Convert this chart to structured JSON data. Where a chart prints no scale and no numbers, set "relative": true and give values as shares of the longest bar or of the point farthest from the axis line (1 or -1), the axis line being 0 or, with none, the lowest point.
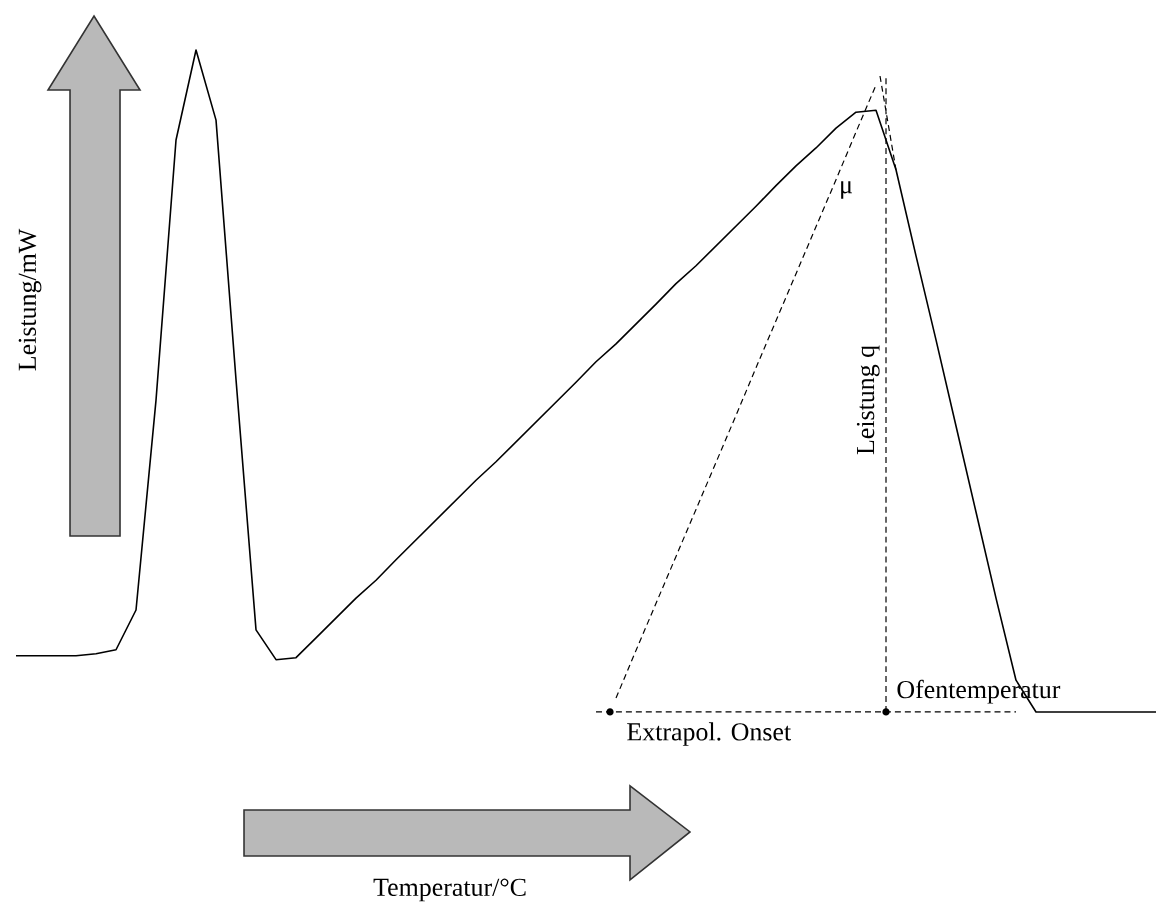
{
  "chart_data": {
    "type": "line",
    "relative": true,
    "ylabel": "Leistung/mW",
    "categories": [
      null,
      null,
      null,
      null,
      null,
      null,
      null,
      null,
      null,
      null,
      null,
      null,
      null,
      null,
      null,
      null,
      null,
      null,
      null,
      null,
      null,
      null,
      null,
      null,
      null,
      null,
      null,
      null,
      null,
      null,
      null,
      null,
      null,
      null,
      null,
      null,
      null,
      null,
      null,
      null,
      null,
      null,
      null,
      null,
      null,
      null,
      null,
      null,
      null,
      null,
      null,
      null,
      null,
      null,
      null,
      null,
      null,
      null
    ],
    "series": [
      {
        "color": "#000000",
        "line_style": "solid",
        "values": [
          0.085,
          0.085,
          0.085,
          0.085,
          0.088,
          0.094,
          0.154,
          0.471,
          0.864,
          1.0,
          0.894,
          0.502,
          0.124,
          0.079,
          0.082,
          0.112,
          0.142,
          0.172,
          0.199,
          0.23,
          0.26,
          0.29,
          0.32,
          0.35,
          0.378,
          0.408,
          0.438,
          0.468,
          0.498,
          0.529,
          0.556,
          0.586,
          0.616,
          0.647,
          0.674,
          0.704,
          0.734,
          0.764,
          0.795,
          0.825,
          0.852,
          0.882,
          0.906,
          0.909,
          0.819,
          0.689,
          0.562,
          0.432,
          0.302,
          0.172,
          0.048,
          0,
          0,
          0,
          0,
          0,
          0,
          0
        ]
      },
      {
        "color": "#000000",
        "line_style": "dashed",
        "values": [
          null,
          null,
          null,
          null,
          null,
          null,
          null,
          null,
          null,
          null,
          null,
          null,
          null,
          null,
          null,
          null,
          null,
          null,
          null,
          null,
          null,
          null,
          null,
          null,
          null,
          null,
          null,
          null,
          null,
          null,
          0.021,
          0.093,
          0.164,
          0.235,
          0.306,
          0.377,
          0.448,
          0.52,
          0.591,
          0.662,
          0.733,
          0.804,
          0.876,
          0.947,
          null,
          null,
          null,
          null,
          null,
          null,
          null,
          null,
          null,
          null,
          null,
          null,
          null,
          null
        ]
      },
      {
        "color": "#000000",
        "line_style": "dashed",
        "values": [
          null,
          null,
          null,
          null,
          null,
          null,
          null,
          null,
          null,
          null,
          null,
          null,
          null,
          null,
          null,
          null,
          null,
          null,
          null,
          null,
          null,
          null,
          null,
          null,
          null,
          null,
          null,
          null,
          null,
          0,
          0,
          0,
          0,
          0,
          0,
          0,
          0,
          0,
          0,
          0,
          0,
          0,
          0,
          0,
          0,
          0,
          0,
          0,
          0,
          0,
          0,
          null,
          null,
          null,
          null,
          null,
          null,
          null
        ]
      }
    ],
    "annotations": [
      "μ",
      "Leistung q",
      "Ofentemperatur",
      "Extrapol. Onset",
      "Temperatur/°C"
    ]
  }
}
